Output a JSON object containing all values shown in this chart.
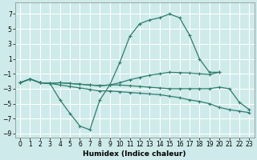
{
  "xlabel": "Humidex (Indice chaleur)",
  "xlim": [
    -0.5,
    23.5
  ],
  "ylim": [
    -9.5,
    8.5
  ],
  "xticks": [
    0,
    1,
    2,
    3,
    4,
    5,
    6,
    7,
    8,
    9,
    10,
    11,
    12,
    13,
    14,
    15,
    16,
    17,
    18,
    19,
    20,
    21,
    22,
    23
  ],
  "yticks": [
    -9,
    -7,
    -5,
    -3,
    -1,
    1,
    3,
    5,
    7
  ],
  "bg_color": "#ceeaea",
  "grid_color": "#ffffff",
  "line_color": "#2e7d6e",
  "lines": [
    {
      "x": [
        0,
        1,
        2,
        3,
        4,
        5,
        6,
        7,
        8,
        9,
        10,
        11,
        12,
        13,
        14,
        15,
        16,
        17,
        18,
        19,
        20
      ],
      "y": [
        -2.2,
        -1.7,
        -2.2,
        -2.3,
        -2.2,
        -2.3,
        -2.4,
        -2.5,
        -2.6,
        -2.5,
        0.5,
        4.0,
        5.7,
        6.2,
        6.5,
        7.0,
        6.5,
        4.2,
        1.0,
        -0.8,
        -0.8
      ]
    },
    {
      "x": [
        0,
        1,
        2,
        3,
        4,
        5,
        6,
        7,
        8,
        9,
        10,
        11,
        12,
        13,
        14,
        15,
        16,
        17,
        18,
        19,
        20
      ],
      "y": [
        -2.2,
        -1.7,
        -2.2,
        -2.3,
        -2.2,
        -2.3,
        -2.4,
        -2.5,
        -2.6,
        -2.5,
        -2.2,
        -1.8,
        -1.5,
        -1.2,
        -1.0,
        -0.8,
        -0.85,
        -0.9,
        -1.0,
        -1.1,
        -0.8
      ]
    },
    {
      "x": [
        0,
        1,
        2,
        3,
        4,
        5,
        6,
        7,
        8,
        9,
        10,
        11,
        12,
        13,
        14,
        15,
        16,
        17,
        18,
        19,
        20,
        21,
        22,
        23
      ],
      "y": [
        -2.2,
        -1.7,
        -2.2,
        -2.3,
        -4.5,
        -6.3,
        -8.0,
        -8.5,
        -4.5,
        -2.5,
        -2.5,
        -2.6,
        -2.7,
        -2.8,
        -2.9,
        -3.0,
        -3.0,
        -3.0,
        -3.0,
        -3.0,
        -2.8,
        -3.0,
        -4.8,
        -5.8
      ]
    },
    {
      "x": [
        0,
        1,
        2,
        3,
        4,
        5,
        6,
        7,
        8,
        9,
        10,
        11,
        12,
        13,
        14,
        15,
        16,
        17,
        18,
        19,
        20,
        21,
        22,
        23
      ],
      "y": [
        -2.2,
        -1.7,
        -2.2,
        -2.3,
        -2.5,
        -2.7,
        -2.9,
        -3.1,
        -3.3,
        -3.3,
        -3.4,
        -3.5,
        -3.6,
        -3.7,
        -3.8,
        -4.0,
        -4.2,
        -4.5,
        -4.7,
        -5.0,
        -5.5,
        -5.8,
        -6.0,
        -6.2
      ]
    }
  ]
}
